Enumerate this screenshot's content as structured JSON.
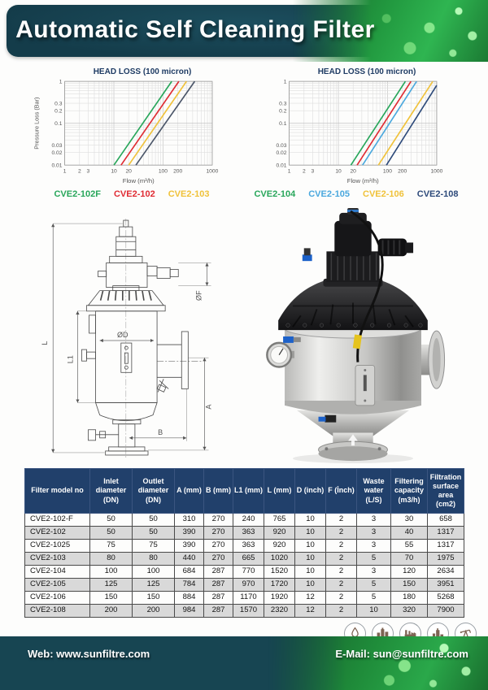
{
  "header": {
    "title": "Automatic Self Cleaning Filter"
  },
  "chart_data": [
    {
      "type": "line",
      "title": "HEAD LOSS (100 micron)",
      "xlabel": "Flow (m³/h)",
      "ylabel": "Pressure Loss (Bar)",
      "xscale": "log",
      "yscale": "log",
      "xlim": [
        1,
        1000
      ],
      "ylim": [
        0.01,
        1
      ],
      "xticks": [
        "1",
        "2",
        "3",
        "10",
        "20",
        "100",
        "200",
        "1000"
      ],
      "yticks": [
        "1",
        "0.3",
        "0.2",
        "0.1",
        "0.03",
        "0.02",
        "0.01"
      ],
      "grid": true,
      "legend_position": "bottom",
      "series": [
        {
          "name": "CVE2-102F",
          "color": "#27a65a",
          "points": [
            [
              10,
              0.01
            ],
            [
              150,
              1
            ]
          ]
        },
        {
          "name": "CVE2-102",
          "color": "#e02b33",
          "points": [
            [
              14,
              0.01
            ],
            [
              210,
              1
            ]
          ]
        },
        {
          "name": "CVE2-103",
          "color": "#f0c23a",
          "points": [
            [
              20,
              0.01
            ],
            [
              300,
              1
            ]
          ]
        },
        {
          "name": "",
          "color": "#4a5568",
          "points": [
            [
              28,
              0.01
            ],
            [
              440,
              1
            ]
          ]
        }
      ]
    },
    {
      "type": "line",
      "title": "HEAD LOSS (100 micron)",
      "xlabel": "Flow (m³/h)",
      "ylabel": "",
      "xscale": "log",
      "yscale": "log",
      "xlim": [
        1,
        1000
      ],
      "ylim": [
        0.01,
        1
      ],
      "xticks": [
        "1",
        "2",
        "3",
        "10",
        "20",
        "100",
        "200",
        "1000"
      ],
      "yticks": [
        "1",
        "0.3",
        "0.2",
        "0.1",
        "0.03",
        "0.02",
        "0.01"
      ],
      "grid": true,
      "legend_position": "bottom",
      "series": [
        {
          "name": "CVE2-104",
          "color": "#27a65a",
          "points": [
            [
              18,
              0.01
            ],
            [
              230,
              1
            ]
          ]
        },
        {
          "name": "",
          "color": "#e02b33",
          "points": [
            [
              24,
              0.01
            ],
            [
              300,
              1
            ]
          ]
        },
        {
          "name": "CVE2-105",
          "color": "#4aa8de",
          "points": [
            [
              31,
              0.01
            ],
            [
              390,
              1
            ]
          ]
        },
        {
          "name": "CVE2-106",
          "color": "#f0c23a",
          "points": [
            [
              65,
              0.01
            ],
            [
              830,
              1
            ]
          ]
        },
        {
          "name": "CVE2-108",
          "color": "#2d4a7a",
          "points": [
            [
              95,
              0.01
            ],
            [
              1000,
              0.8
            ]
          ]
        }
      ]
    }
  ],
  "drawing": {
    "labels": {
      "L": "L",
      "L1": "L1",
      "D": "ØD",
      "F": "ØF",
      "A": "A",
      "B": "B"
    }
  },
  "table": {
    "columns": [
      "Filter model no",
      "Inlet diameter (DN)",
      "Outlet diameter (DN)",
      "A (mm)",
      "B (mm)",
      "L1 (mm)",
      "L (mm)",
      "D (inch)",
      "F (İnch)",
      "Waste water (L/S)",
      "Filtering capacity (m3/h)",
      "Filtration surface area (cm2)"
    ],
    "rows": [
      [
        "CVE2-102-F",
        "50",
        "50",
        "310",
        "270",
        "240",
        "765",
        "10",
        "2",
        "3",
        "30",
        "658"
      ],
      [
        "CVE2-102",
        "50",
        "50",
        "390",
        "270",
        "363",
        "920",
        "10",
        "2",
        "3",
        "40",
        "1317"
      ],
      [
        "CVE2-1025",
        "75",
        "75",
        "390",
        "270",
        "363",
        "920",
        "10",
        "2",
        "3",
        "55",
        "1317"
      ],
      [
        "CVE2-103",
        "80",
        "80",
        "440",
        "270",
        "665",
        "1020",
        "10",
        "2",
        "5",
        "70",
        "1975"
      ],
      [
        "CVE2-104",
        "100",
        "100",
        "684",
        "287",
        "770",
        "1520",
        "10",
        "2",
        "3",
        "120",
        "2634"
      ],
      [
        "CVE2-105",
        "125",
        "125",
        "784",
        "287",
        "970",
        "1720",
        "10",
        "2",
        "5",
        "150",
        "3951"
      ],
      [
        "CVE2-106",
        "150",
        "150",
        "884",
        "287",
        "1170",
        "1920",
        "12",
        "2",
        "5",
        "180",
        "5268"
      ],
      [
        "CVE2-108",
        "200",
        "200",
        "984",
        "287",
        "1570",
        "2320",
        "12",
        "2",
        "10",
        "320",
        "7900"
      ]
    ]
  },
  "sector_icons": [
    "water-treatment",
    "municipal-buildings",
    "factory",
    "industrial-plant",
    "oil-pump"
  ],
  "footer": {
    "web": "Web: www.sunfiltre.com",
    "email": "E-Mail: sun@sunfiltre.com"
  }
}
